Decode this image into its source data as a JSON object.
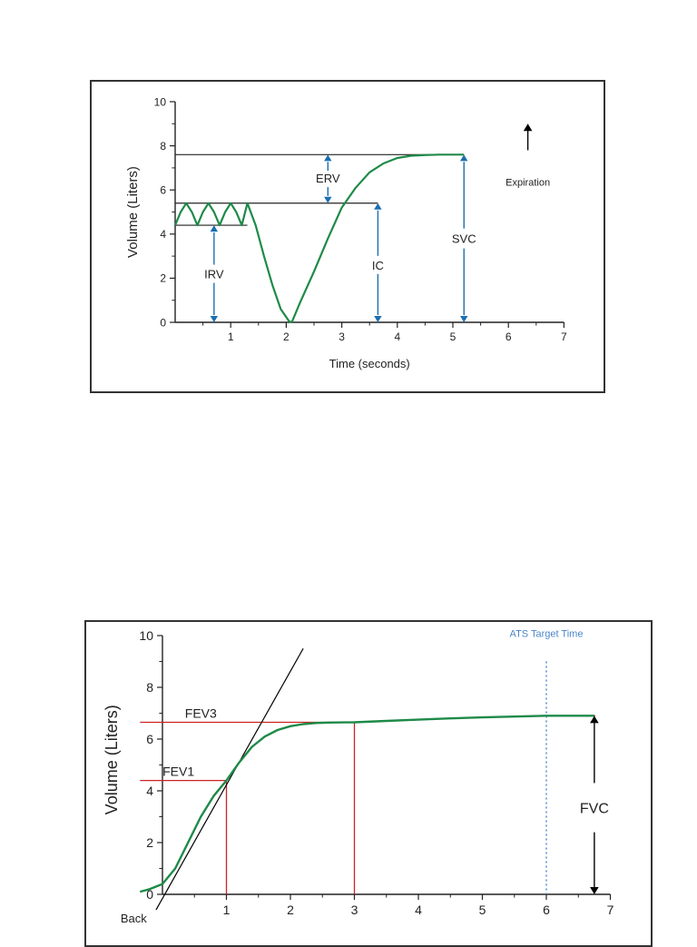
{
  "chart_data": [
    {
      "type": "line",
      "xlabel": "Time (seconds)",
      "ylabel": "Volume (Liters)",
      "xlim": [
        0,
        7
      ],
      "ylim": [
        0,
        10
      ],
      "x_ticks": [
        1,
        2,
        3,
        4,
        5,
        6,
        7
      ],
      "y_ticks": [
        0,
        2,
        4,
        6,
        8,
        10
      ],
      "grid": false,
      "series": [
        {
          "color": "#1e8a48",
          "x": [
            0,
            0.1,
            0.2,
            0.3,
            0.4,
            0.5,
            0.6,
            0.7,
            0.8,
            0.9,
            1.0,
            1.1,
            1.2,
            1.3,
            1.45,
            1.6,
            1.75,
            1.9,
            2.05,
            2.1,
            2.25,
            2.5,
            2.75,
            3.0,
            3.25,
            3.5,
            3.75,
            4.0,
            4.25,
            4.5,
            4.75,
            5.0,
            5.2
          ],
          "y": [
            4.4,
            5.0,
            5.4,
            5.0,
            4.4,
            5.0,
            5.4,
            5.0,
            4.4,
            5.0,
            5.4,
            5.0,
            4.4,
            5.4,
            4.4,
            3.0,
            1.7,
            0.6,
            0.05,
            0.0,
            0.9,
            2.3,
            3.8,
            5.2,
            6.1,
            6.8,
            7.2,
            7.45,
            7.55,
            7.58,
            7.6,
            7.6,
            7.6
          ]
        }
      ],
      "reference_lines": [
        {
          "x_start": 0,
          "x_end": 5.2,
          "y": 7.6
        },
        {
          "x_start": 0,
          "x_end": 3.65,
          "y": 5.4
        },
        {
          "x_start": 0,
          "x_end": 1.3,
          "y": 4.4
        }
      ],
      "annotations": [
        {
          "label": "ERV",
          "x": 2.75,
          "y_from": 5.4,
          "y_to": 7.6,
          "color": "#1a6fb0"
        },
        {
          "label": "IC",
          "x": 3.65,
          "y_from": 0,
          "y_to": 5.4,
          "color": "#1a6fb0"
        },
        {
          "label": "SVC",
          "x": 5.2,
          "y_from": 0,
          "y_to": 7.6,
          "color": "#1a6fb0"
        },
        {
          "label": "IRV",
          "x": 0.7,
          "y_from": 0,
          "y_to": 4.4,
          "color": "#1a6fb0"
        },
        {
          "label": "Expiration",
          "x": 6.35,
          "y_from": 7.8,
          "y_to": 9.0,
          "color": "#000000"
        }
      ]
    },
    {
      "type": "line",
      "xlabel": "",
      "ylabel": "Volume (Liters)",
      "xlim": [
        0,
        7
      ],
      "ylim": [
        0,
        10
      ],
      "x_ticks": [
        1,
        2,
        3,
        4,
        5,
        6,
        7
      ],
      "y_ticks": [
        0,
        2,
        4,
        6,
        8,
        10
      ],
      "grid": false,
      "series": [
        {
          "color": "#1e8a48",
          "x": [
            -0.35,
            -0.2,
            0,
            0.2,
            0.4,
            0.6,
            0.8,
            1.0,
            1.2,
            1.4,
            1.6,
            1.8,
            2.0,
            2.2,
            2.4,
            2.6,
            3.0,
            3.5,
            4.0,
            4.5,
            5.0,
            5.5,
            6.0,
            6.5,
            6.75
          ],
          "y": [
            0.1,
            0.2,
            0.4,
            1.0,
            2.0,
            3.0,
            3.8,
            4.4,
            5.1,
            5.7,
            6.1,
            6.35,
            6.5,
            6.58,
            6.62,
            6.64,
            6.65,
            6.7,
            6.75,
            6.8,
            6.84,
            6.87,
            6.9,
            6.9,
            6.9
          ]
        }
      ],
      "reference_lines": [
        {
          "label": "FEV3",
          "x_start": -0.35,
          "x_end": 3.0,
          "y": 6.65,
          "color": "#cc2222"
        },
        {
          "label": "FEV1",
          "x_start": -0.35,
          "x_end": 1.0,
          "y": 4.4,
          "color": "#cc2222"
        },
        {
          "x": 1.0,
          "y_start": 0,
          "y_end": 4.4,
          "color": "#cc2222"
        },
        {
          "x": 3.0,
          "y_start": 0,
          "y_end": 6.65,
          "color": "#cc2222"
        },
        {
          "x_start": 6.75,
          "x_end": 6.75,
          "y_start": 6.9,
          "y_end": 6.9,
          "color": "#cc2222"
        }
      ],
      "extrapolation_line": {
        "x1": -0.1,
        "y1": -0.6,
        "x2": 2.2,
        "y2": 9.5,
        "color": "#000000"
      },
      "vertical_marker": {
        "label": "ATS Target Time",
        "x": 6.0,
        "color": "#4a86c8"
      },
      "annotations": [
        {
          "label": "FVC",
          "x": 6.75,
          "y_from": 0,
          "y_to": 6.9,
          "color": "#000000"
        }
      ],
      "partial_label": "Back"
    }
  ]
}
